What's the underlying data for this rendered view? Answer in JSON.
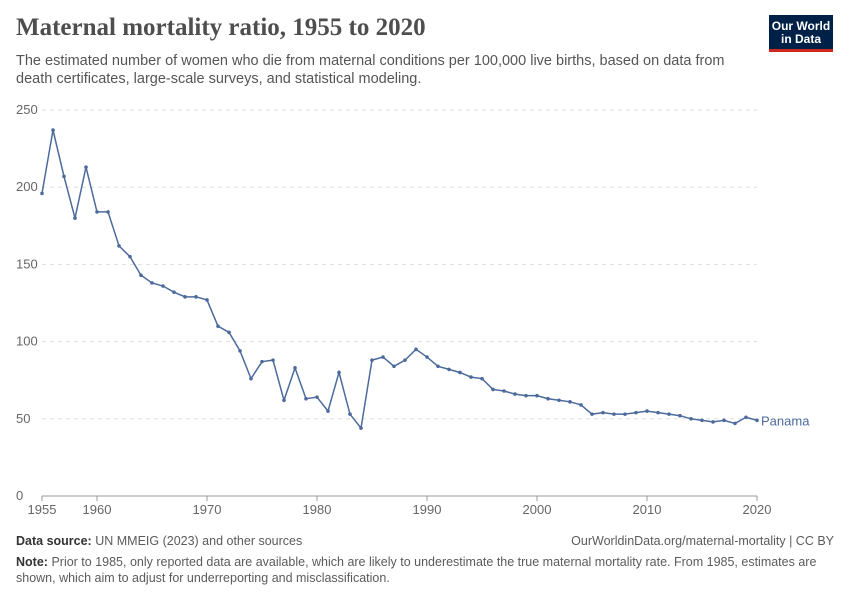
{
  "title": "Maternal mortality ratio, 1955 to 2020",
  "subtitle": "The estimated number of women who die from maternal conditions per 100,000 live births, based on data from death certificates, large-scale surveys, and statistical modeling.",
  "logo": {
    "line1": "Our World",
    "line2": "in Data",
    "bg": "#002147",
    "accent": "#ce261e"
  },
  "footer": {
    "source_label": "Data source:",
    "source": "UN MMEIG (2023) and other sources",
    "url": "OurWorldinData.org/maternal-mortality | CC BY",
    "note_label": "Note:",
    "note": "Prior to 1985, only reported data are available, which are likely to underestimate the true maternal mortality rate. From 1985, estimates are shown, which aim to adjust for underreporting and misclassification."
  },
  "chart_data": {
    "type": "line",
    "xlim": [
      1955,
      2020
    ],
    "ylim": [
      0,
      250
    ],
    "x_ticks": [
      1955,
      1960,
      1970,
      1980,
      1990,
      2000,
      2010,
      2020
    ],
    "y_ticks": [
      0,
      50,
      100,
      150,
      200,
      250
    ],
    "grid": "horizontal dashed",
    "legend": "right end label",
    "series": [
      {
        "name": "Panama",
        "color": "#4c6a9c",
        "x": [
          1955,
          1956,
          1957,
          1958,
          1959,
          1960,
          1961,
          1962,
          1963,
          1964,
          1965,
          1966,
          1967,
          1968,
          1969,
          1970,
          1971,
          1972,
          1973,
          1974,
          1975,
          1976,
          1977,
          1978,
          1979,
          1980,
          1981,
          1982,
          1983,
          1984,
          1985,
          1986,
          1987,
          1988,
          1989,
          1990,
          1991,
          1992,
          1993,
          1994,
          1995,
          1996,
          1997,
          1998,
          1999,
          2000,
          2001,
          2002,
          2003,
          2004,
          2005,
          2006,
          2007,
          2008,
          2009,
          2010,
          2011,
          2012,
          2013,
          2014,
          2015,
          2016,
          2017,
          2018,
          2019,
          2020
        ],
        "y": [
          196,
          237,
          207,
          180,
          213,
          184,
          184,
          162,
          155,
          143,
          138,
          136,
          132,
          129,
          129,
          127,
          110,
          106,
          94,
          76,
          87,
          88,
          62,
          83,
          63,
          64,
          55,
          80,
          53,
          44,
          88,
          90,
          84,
          88,
          95,
          90,
          84,
          82,
          80,
          77,
          76,
          69,
          68,
          66,
          65,
          65,
          63,
          62,
          61,
          59,
          53,
          54,
          53,
          53,
          54,
          55,
          54,
          53,
          52,
          50,
          49,
          48,
          49,
          47,
          51,
          49
        ]
      }
    ]
  }
}
